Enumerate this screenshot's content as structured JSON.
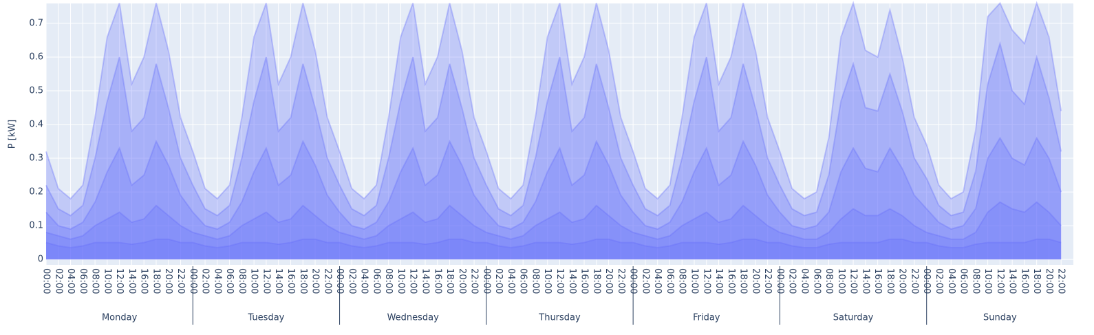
{
  "chart_data": {
    "type": "line",
    "y_label": "P [kW]",
    "groups": [
      {
        "name": "Monday",
        "categories": [
          "00:00",
          "02:00",
          "04:00",
          "06:00",
          "08:00",
          "10:00",
          "12:00",
          "14:00",
          "16:00",
          "18:00",
          "20:00",
          "22:00"
        ]
      },
      {
        "name": "Tuesday",
        "categories": [
          "00:00",
          "02:00",
          "04:00",
          "06:00",
          "08:00",
          "10:00",
          "12:00",
          "14:00",
          "16:00",
          "18:00",
          "20:00",
          "22:00"
        ]
      },
      {
        "name": "Wednesday",
        "categories": [
          "00:00",
          "02:00",
          "04:00",
          "06:00",
          "08:00",
          "10:00",
          "12:00",
          "14:00",
          "16:00",
          "18:00",
          "20:00",
          "22:00"
        ]
      },
      {
        "name": "Thursday",
        "categories": [
          "00:00",
          "02:00",
          "04:00",
          "06:00",
          "08:00",
          "10:00",
          "12:00",
          "14:00",
          "16:00",
          "18:00",
          "20:00",
          "22:00"
        ]
      },
      {
        "name": "Friday",
        "categories": [
          "00:00",
          "02:00",
          "04:00",
          "06:00",
          "08:00",
          "10:00",
          "12:00",
          "14:00",
          "16:00",
          "18:00",
          "20:00",
          "22:00"
        ]
      },
      {
        "name": "Saturday",
        "categories": [
          "00:00",
          "02:00",
          "04:00",
          "06:00",
          "08:00",
          "10:00",
          "12:00",
          "14:00",
          "16:00",
          "18:00",
          "20:00",
          "22:00"
        ]
      },
      {
        "name": "Sunday",
        "categories": [
          "00:00",
          "02:00",
          "04:00",
          "06:00",
          "08:00",
          "10:00",
          "12:00",
          "14:00",
          "16:00",
          "18:00",
          "20:00",
          "22:00"
        ]
      }
    ],
    "series": [
      {
        "color": "#636efa",
        "values": [
          0.05,
          0.04,
          0.035,
          0.04,
          0.05,
          0.05,
          0.05,
          0.045,
          0.05,
          0.06,
          0.06,
          0.05,
          0.05,
          0.04,
          0.035,
          0.04,
          0.05,
          0.05,
          0.05,
          0.045,
          0.05,
          0.06,
          0.06,
          0.05,
          0.05,
          0.04,
          0.035,
          0.04,
          0.05,
          0.05,
          0.05,
          0.045,
          0.05,
          0.06,
          0.06,
          0.05,
          0.05,
          0.04,
          0.035,
          0.04,
          0.05,
          0.05,
          0.05,
          0.045,
          0.05,
          0.06,
          0.06,
          0.05,
          0.05,
          0.04,
          0.035,
          0.04,
          0.05,
          0.05,
          0.05,
          0.045,
          0.05,
          0.06,
          0.06,
          0.05,
          0.05,
          0.04,
          0.035,
          0.035,
          0.045,
          0.05,
          0.05,
          0.05,
          0.05,
          0.06,
          0.06,
          0.05,
          0.05,
          0.04,
          0.035,
          0.035,
          0.045,
          0.05,
          0.05,
          0.05,
          0.05,
          0.06,
          0.06,
          0.05
        ]
      },
      {
        "color": "#636efa",
        "values": [
          0.08,
          0.07,
          0.06,
          0.07,
          0.1,
          0.12,
          0.14,
          0.11,
          0.12,
          0.16,
          0.13,
          0.1,
          0.08,
          0.07,
          0.06,
          0.07,
          0.1,
          0.12,
          0.14,
          0.11,
          0.12,
          0.16,
          0.13,
          0.1,
          0.08,
          0.07,
          0.06,
          0.07,
          0.1,
          0.12,
          0.14,
          0.11,
          0.12,
          0.16,
          0.13,
          0.1,
          0.08,
          0.07,
          0.06,
          0.07,
          0.1,
          0.12,
          0.14,
          0.11,
          0.12,
          0.16,
          0.13,
          0.1,
          0.08,
          0.07,
          0.06,
          0.07,
          0.1,
          0.12,
          0.14,
          0.11,
          0.12,
          0.16,
          0.13,
          0.1,
          0.08,
          0.07,
          0.06,
          0.06,
          0.08,
          0.12,
          0.15,
          0.13,
          0.13,
          0.15,
          0.13,
          0.1,
          0.08,
          0.07,
          0.06,
          0.06,
          0.08,
          0.14,
          0.17,
          0.15,
          0.14,
          0.17,
          0.14,
          0.1
        ]
      },
      {
        "color": "#636efa",
        "values": [
          0.14,
          0.1,
          0.09,
          0.11,
          0.17,
          0.26,
          0.33,
          0.22,
          0.25,
          0.35,
          0.28,
          0.19,
          0.14,
          0.1,
          0.09,
          0.11,
          0.17,
          0.26,
          0.33,
          0.22,
          0.25,
          0.35,
          0.28,
          0.19,
          0.14,
          0.1,
          0.09,
          0.11,
          0.17,
          0.26,
          0.33,
          0.22,
          0.25,
          0.35,
          0.28,
          0.19,
          0.14,
          0.1,
          0.09,
          0.11,
          0.17,
          0.26,
          0.33,
          0.22,
          0.25,
          0.35,
          0.28,
          0.19,
          0.14,
          0.1,
          0.09,
          0.11,
          0.17,
          0.26,
          0.33,
          0.22,
          0.25,
          0.35,
          0.28,
          0.19,
          0.14,
          0.1,
          0.09,
          0.1,
          0.14,
          0.26,
          0.33,
          0.27,
          0.26,
          0.33,
          0.27,
          0.19,
          0.15,
          0.11,
          0.09,
          0.1,
          0.15,
          0.3,
          0.36,
          0.3,
          0.28,
          0.36,
          0.3,
          0.2
        ]
      },
      {
        "color": "#636efa",
        "values": [
          0.22,
          0.15,
          0.13,
          0.16,
          0.3,
          0.47,
          0.6,
          0.38,
          0.42,
          0.58,
          0.45,
          0.3,
          0.22,
          0.15,
          0.13,
          0.16,
          0.3,
          0.47,
          0.6,
          0.38,
          0.42,
          0.58,
          0.45,
          0.3,
          0.22,
          0.15,
          0.13,
          0.16,
          0.3,
          0.47,
          0.6,
          0.38,
          0.42,
          0.58,
          0.45,
          0.3,
          0.22,
          0.15,
          0.13,
          0.16,
          0.3,
          0.47,
          0.6,
          0.38,
          0.42,
          0.58,
          0.45,
          0.3,
          0.22,
          0.15,
          0.13,
          0.16,
          0.3,
          0.47,
          0.6,
          0.38,
          0.42,
          0.58,
          0.45,
          0.3,
          0.22,
          0.15,
          0.13,
          0.14,
          0.25,
          0.47,
          0.58,
          0.45,
          0.44,
          0.55,
          0.44,
          0.3,
          0.24,
          0.16,
          0.13,
          0.14,
          0.26,
          0.52,
          0.64,
          0.5,
          0.46,
          0.6,
          0.48,
          0.32
        ]
      },
      {
        "color": "#636efa",
        "values": [
          0.32,
          0.21,
          0.18,
          0.22,
          0.42,
          0.66,
          0.76,
          0.52,
          0.6,
          0.76,
          0.62,
          0.42,
          0.32,
          0.21,
          0.18,
          0.22,
          0.42,
          0.66,
          0.76,
          0.52,
          0.6,
          0.76,
          0.62,
          0.42,
          0.32,
          0.21,
          0.18,
          0.22,
          0.42,
          0.66,
          0.76,
          0.52,
          0.6,
          0.76,
          0.62,
          0.42,
          0.32,
          0.21,
          0.18,
          0.22,
          0.42,
          0.66,
          0.76,
          0.52,
          0.6,
          0.76,
          0.62,
          0.42,
          0.32,
          0.21,
          0.18,
          0.22,
          0.42,
          0.66,
          0.76,
          0.52,
          0.6,
          0.76,
          0.62,
          0.42,
          0.32,
          0.21,
          0.18,
          0.2,
          0.36,
          0.66,
          0.76,
          0.62,
          0.6,
          0.74,
          0.6,
          0.42,
          0.34,
          0.22,
          0.18,
          0.2,
          0.38,
          0.72,
          0.76,
          0.68,
          0.64,
          0.76,
          0.66,
          0.44
        ]
      }
    ],
    "ylim": [
      -0.016,
      0.759
    ],
    "yticks": [
      0,
      0.1,
      0.2,
      0.3,
      0.4,
      0.5,
      0.6,
      0.7
    ],
    "grid": true
  }
}
